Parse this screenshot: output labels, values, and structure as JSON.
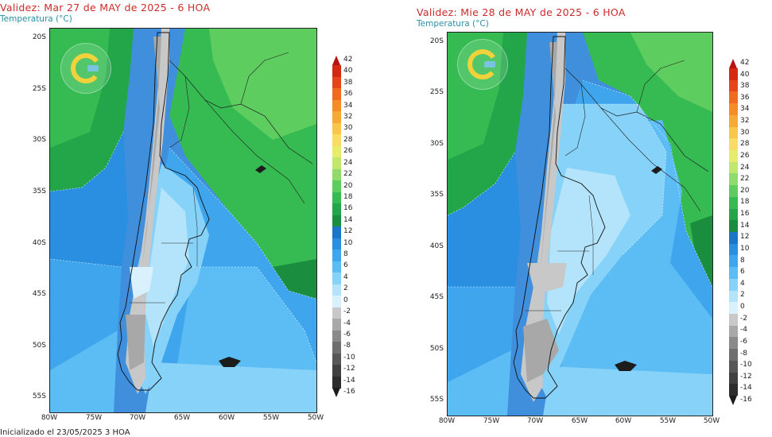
{
  "panels": [
    {
      "title": "Validez: Mar 27 de MAY de 2025 - 6 HOA",
      "subtitle": "Temperatura (°C)",
      "footer": "Inicializado el 23/05/2025 3 HOA"
    },
    {
      "title": "Validez: Mie 28 de MAY de 2025 - 6 HOA",
      "subtitle": "Temperatura (°C)",
      "footer": ""
    }
  ],
  "latitude_ticks": [
    "20S",
    "25S",
    "30S",
    "35S",
    "40S",
    "45S",
    "50S",
    "55S"
  ],
  "longitude_ticks": [
    "80W",
    "75W",
    "70W",
    "65W",
    "60W",
    "55W",
    "50W"
  ],
  "colorbar": {
    "labels": [
      "42",
      "40",
      "38",
      "36",
      "34",
      "32",
      "30",
      "28",
      "26",
      "24",
      "22",
      "20",
      "18",
      "16",
      "14",
      "12",
      "10",
      "8",
      "6",
      "4",
      "2",
      "0",
      "-2",
      "-4",
      "-6",
      "-8",
      "-10",
      "-12",
      "-14",
      "-16"
    ],
    "colors": [
      "#b81212",
      "#d42a12",
      "#e6451a",
      "#f06a20",
      "#f58c28",
      "#f7a935",
      "#f9c54a",
      "#f8dc66",
      "#e8ec6c",
      "#bfe86c",
      "#8fdc6a",
      "#5ccd5e",
      "#36bb52",
      "#23a54a",
      "#1a8d3f",
      "#1c76c8",
      "#2a8fe0",
      "#3fa6ee",
      "#5cbcf4",
      "#86d2f8",
      "#b4e4fb",
      "#d8f1fc",
      "#c8c8c8",
      "#a8a8a8",
      "#8a8a8a",
      "#6f6f6f",
      "#575757",
      "#414141",
      "#2d2d2d",
      "#1c1c1c"
    ]
  },
  "logo_icon": "smn-logo-icon"
}
